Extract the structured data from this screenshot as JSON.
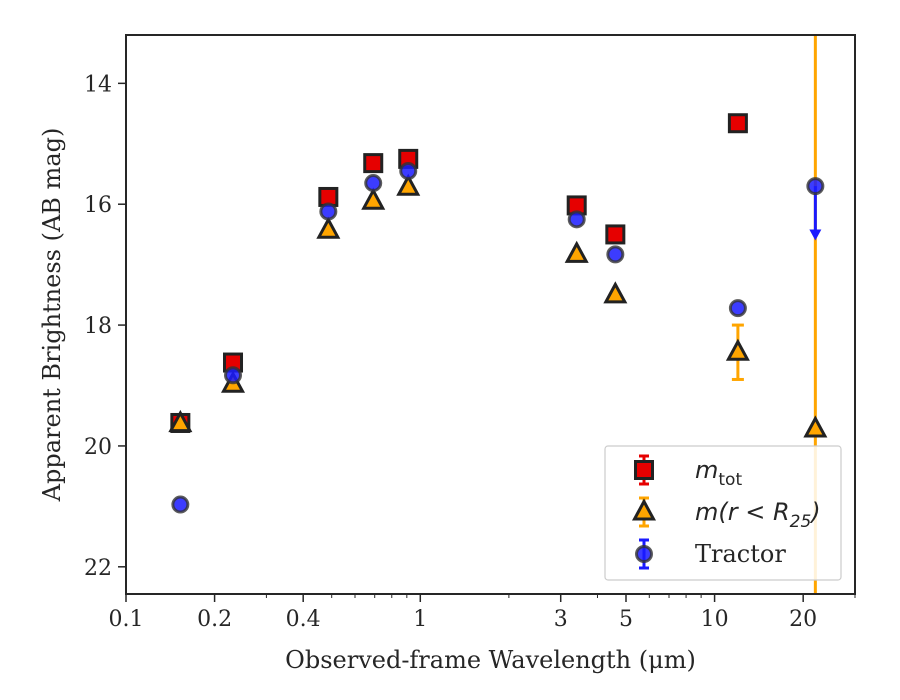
{
  "chart_data": {
    "type": "scatter",
    "xlabel": "Observed-frame Wavelength (μm)",
    "ylabel": "Apparent Brightness (AB mag)",
    "xscale": "log",
    "xlim": [
      0.1,
      30
    ],
    "ylim": [
      22.45,
      13.2
    ],
    "y_inverted": true,
    "xticks": [
      0.1,
      0.2,
      0.4,
      1,
      3,
      5,
      10,
      20
    ],
    "xtick_labels": [
      "0.1",
      "0.2",
      "0.4",
      "1",
      "3",
      "5",
      "10",
      "20"
    ],
    "yticks": [
      14,
      16,
      18,
      20,
      22
    ],
    "ytick_labels": [
      "14",
      "16",
      "18",
      "20",
      "22"
    ],
    "legend_position": "lower-right",
    "vertical_line": {
      "x": 22,
      "color": "#ffa500"
    },
    "series": [
      {
        "name": "m_tot",
        "marker": "square",
        "color": "#e60000",
        "points": [
          {
            "x": 0.153,
            "y": 19.62
          },
          {
            "x": 0.231,
            "y": 18.62
          },
          {
            "x": 0.487,
            "y": 15.88
          },
          {
            "x": 0.692,
            "y": 15.32
          },
          {
            "x": 0.91,
            "y": 15.25
          },
          {
            "x": 3.4,
            "y": 16.02
          },
          {
            "x": 4.6,
            "y": 16.5
          },
          {
            "x": 12.0,
            "y": 14.66
          }
        ]
      },
      {
        "name": "m(r < R25)",
        "marker": "triangle",
        "color": "#ffa500",
        "points": [
          {
            "x": 0.153,
            "y": 19.63,
            "err": 0
          },
          {
            "x": 0.231,
            "y": 18.98,
            "err": 0
          },
          {
            "x": 0.487,
            "y": 16.43,
            "err": 0
          },
          {
            "x": 0.692,
            "y": 15.95,
            "err": 0
          },
          {
            "x": 0.91,
            "y": 15.72,
            "err": 0
          },
          {
            "x": 3.4,
            "y": 16.83,
            "err": 0
          },
          {
            "x": 4.6,
            "y": 17.5,
            "err": 0
          },
          {
            "x": 12.0,
            "y": 18.45,
            "err": 0.45
          },
          {
            "x": 22.0,
            "y": 19.72,
            "err": 0
          }
        ]
      },
      {
        "name": "Tractor",
        "marker": "circle",
        "color": "#1a1aff",
        "points": [
          {
            "x": 0.153,
            "y": 20.97
          },
          {
            "x": 0.231,
            "y": 18.83
          },
          {
            "x": 0.487,
            "y": 16.12
          },
          {
            "x": 0.692,
            "y": 15.65
          },
          {
            "x": 0.91,
            "y": 15.45
          },
          {
            "x": 3.4,
            "y": 16.25
          },
          {
            "x": 4.6,
            "y": 16.83
          },
          {
            "x": 12.0,
            "y": 17.72
          },
          {
            "x": 22.0,
            "y": 15.7,
            "upper_limit": true,
            "arrow_to": 16.55
          }
        ]
      }
    ],
    "legend": [
      {
        "label_base": "m",
        "label_sub": "tot",
        "marker": "square"
      },
      {
        "label_base": "m(r < R",
        "label_sub": "25",
        "label_end": ")",
        "marker": "triangle"
      },
      {
        "label_base": "Tractor",
        "label_sub": "",
        "marker": "circle"
      }
    ]
  }
}
